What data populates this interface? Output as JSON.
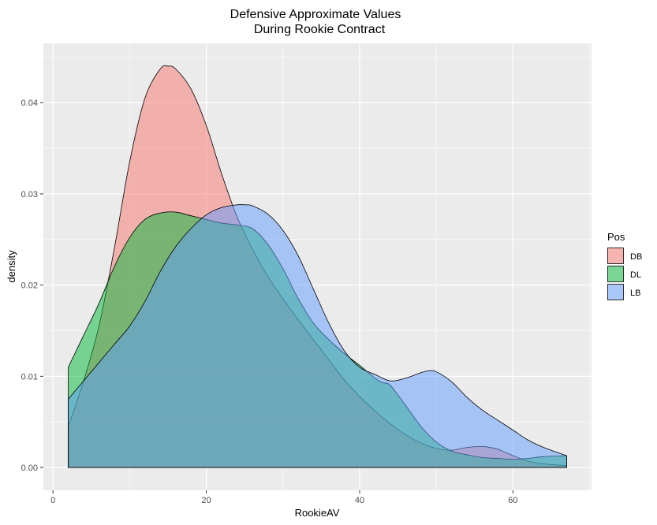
{
  "chart_data": {
    "type": "area",
    "title_line1": "Defensive Approximate Values",
    "title_line2": "During Rookie Contract",
    "xlabel": "RookieAV",
    "ylabel": "density",
    "xlim": [
      -1.25,
      70.25
    ],
    "ylim": [
      -0.0025,
      0.0465
    ],
    "x_ticks": [
      0,
      20,
      40,
      60
    ],
    "y_ticks": [
      0.0,
      0.01,
      0.02,
      0.03,
      0.04
    ],
    "y_tick_labels": [
      "0.00",
      "0.01",
      "0.02",
      "0.03",
      "0.04"
    ],
    "grid": true,
    "legend_title": "Pos",
    "legend_position": "right",
    "series": [
      {
        "name": "DB",
        "color": "#F8766D",
        "x": [
          2,
          4,
          6,
          8,
          10,
          12,
          14,
          15,
          16,
          18,
          20,
          22,
          24,
          26,
          28,
          30,
          32,
          34,
          36,
          38,
          40,
          42,
          44,
          46,
          48,
          50,
          52,
          54,
          56,
          58,
          60,
          62,
          64,
          67
        ],
        "y": [
          0.0045,
          0.0095,
          0.0155,
          0.024,
          0.0335,
          0.0405,
          0.0437,
          0.044,
          0.0437,
          0.0415,
          0.0375,
          0.0322,
          0.0275,
          0.024,
          0.021,
          0.0185,
          0.0162,
          0.014,
          0.0118,
          0.0096,
          0.0078,
          0.0062,
          0.0048,
          0.0036,
          0.0027,
          0.0021,
          0.0019,
          0.0022,
          0.0023,
          0.002,
          0.0013,
          0.0007,
          0.0004,
          0.0002
        ]
      },
      {
        "name": "DL",
        "color": "#00BA38",
        "x": [
          2,
          4,
          6,
          8,
          10,
          12,
          14,
          16,
          18,
          20,
          22,
          24,
          26,
          28,
          30,
          32,
          34,
          36,
          38,
          40,
          42,
          43,
          44,
          46,
          48,
          50,
          52,
          54,
          56,
          58,
          60,
          62,
          64,
          67
        ],
        "y": [
          0.011,
          0.0145,
          0.018,
          0.022,
          0.0252,
          0.0272,
          0.0279,
          0.028,
          0.0276,
          0.0272,
          0.0268,
          0.0266,
          0.0262,
          0.0245,
          0.0218,
          0.0185,
          0.0158,
          0.014,
          0.0125,
          0.0112,
          0.0098,
          0.0093,
          0.009,
          0.0068,
          0.0045,
          0.0028,
          0.0018,
          0.0014,
          0.0011,
          0.001,
          0.0009,
          0.001,
          0.0012,
          0.0013
        ]
      },
      {
        "name": "LB",
        "color": "#619CFF",
        "x": [
          2,
          4,
          6,
          8,
          10,
          12,
          14,
          16,
          18,
          20,
          22,
          24,
          25,
          26,
          28,
          30,
          32,
          34,
          36,
          38,
          40,
          42,
          44,
          46,
          48,
          49,
          50,
          52,
          54,
          56,
          58,
          60,
          62,
          64,
          67
        ],
        "y": [
          0.0075,
          0.0095,
          0.0115,
          0.0135,
          0.0155,
          0.0182,
          0.0215,
          0.0242,
          0.0262,
          0.0277,
          0.0285,
          0.0288,
          0.0288,
          0.0287,
          0.0278,
          0.026,
          0.0232,
          0.0195,
          0.0158,
          0.0128,
          0.011,
          0.0102,
          0.0095,
          0.0098,
          0.0104,
          0.0106,
          0.0105,
          0.0094,
          0.0077,
          0.0063,
          0.0052,
          0.0041,
          0.003,
          0.0022,
          0.0013
        ]
      }
    ]
  }
}
